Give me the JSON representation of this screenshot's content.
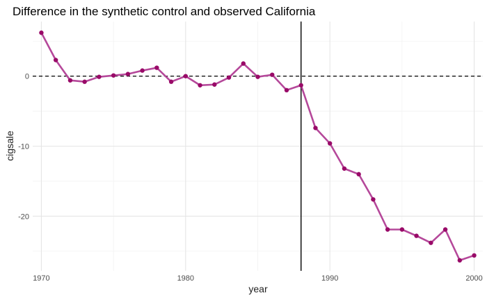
{
  "chart_data": {
    "type": "line",
    "title": "Difference in the synthetic control and observed California",
    "xlabel": "year",
    "ylabel": "cigsale",
    "xlim": [
      1969.4,
      2000.6
    ],
    "ylim": [
      -27.8,
      7.8
    ],
    "x_ticks": [
      1970,
      1980,
      1990,
      2000
    ],
    "y_ticks": [
      0,
      -10,
      -20
    ],
    "y_tick_labels": [
      "0",
      "-10",
      "-20"
    ],
    "grid": true,
    "reference_hline": 0,
    "reference_vline": 1988,
    "series": [
      {
        "x": [
          1970,
          1971,
          1972,
          1973,
          1974,
          1975,
          1976,
          1977,
          1978,
          1979,
          1980,
          1981,
          1982,
          1983,
          1984,
          1985,
          1986,
          1987,
          1988,
          1989,
          1990,
          1991,
          1992,
          1993,
          1994,
          1995,
          1996,
          1997,
          1998,
          1999,
          2000
        ],
        "y": [
          6.2,
          2.3,
          -0.6,
          -0.8,
          -0.1,
          0.1,
          0.3,
          0.8,
          1.2,
          -0.8,
          0.0,
          -1.3,
          -1.2,
          -0.2,
          1.8,
          -0.1,
          0.2,
          -2.0,
          -1.3,
          -7.4,
          -9.6,
          -13.2,
          -14.0,
          -17.6,
          -21.9,
          -21.9,
          -22.8,
          -23.8,
          -21.9,
          -26.3,
          -25.6
        ]
      }
    ],
    "colors": {
      "line": "#b5489a",
      "point": "#990a68",
      "grid_major": "#e5e5e5",
      "grid_minor": "#f2f2f2",
      "reference": "#000000"
    }
  }
}
